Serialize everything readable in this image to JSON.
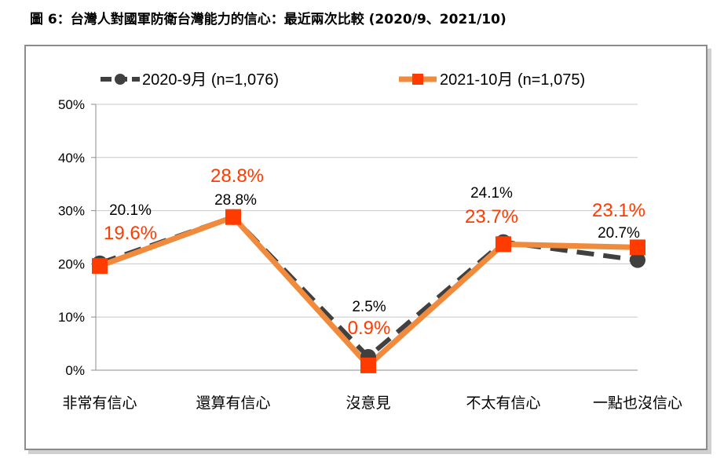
{
  "figure_title": "圖 6：台灣人對國軍防衛台灣能力的信心：最近兩次比較 (2020/9、2021/10)",
  "chart_data": {
    "type": "line",
    "categories": [
      "非常有信心",
      "還算有信心",
      "沒意見",
      "不太有信心",
      "一點也沒信心"
    ],
    "yticks": [
      "0%",
      "10%",
      "20%",
      "30%",
      "40%",
      "50%"
    ],
    "ylim": [
      0,
      50
    ],
    "grid": true,
    "legend_position": "top",
    "series": [
      {
        "name": "2020-9月 (n=1,076)",
        "values": [
          20.1,
          28.8,
          2.5,
          24.1,
          20.7
        ],
        "labels": [
          "20.1%",
          "28.8%",
          "2.5%",
          "24.1%",
          "20.7%"
        ],
        "color": "#404040",
        "label_color": "#000000",
        "style": "dashed",
        "marker": "circle"
      },
      {
        "name": "2021-10月 (n=1,075)",
        "values": [
          19.6,
          28.8,
          0.9,
          23.7,
          23.1
        ],
        "labels": [
          "19.6%",
          "28.8%",
          "0.9%",
          "23.7%",
          "23.1%"
        ],
        "color": "#f08a3c",
        "marker_color": "#ff3b00",
        "label_color": "#ff3b00",
        "style": "solid",
        "marker": "square"
      }
    ]
  }
}
